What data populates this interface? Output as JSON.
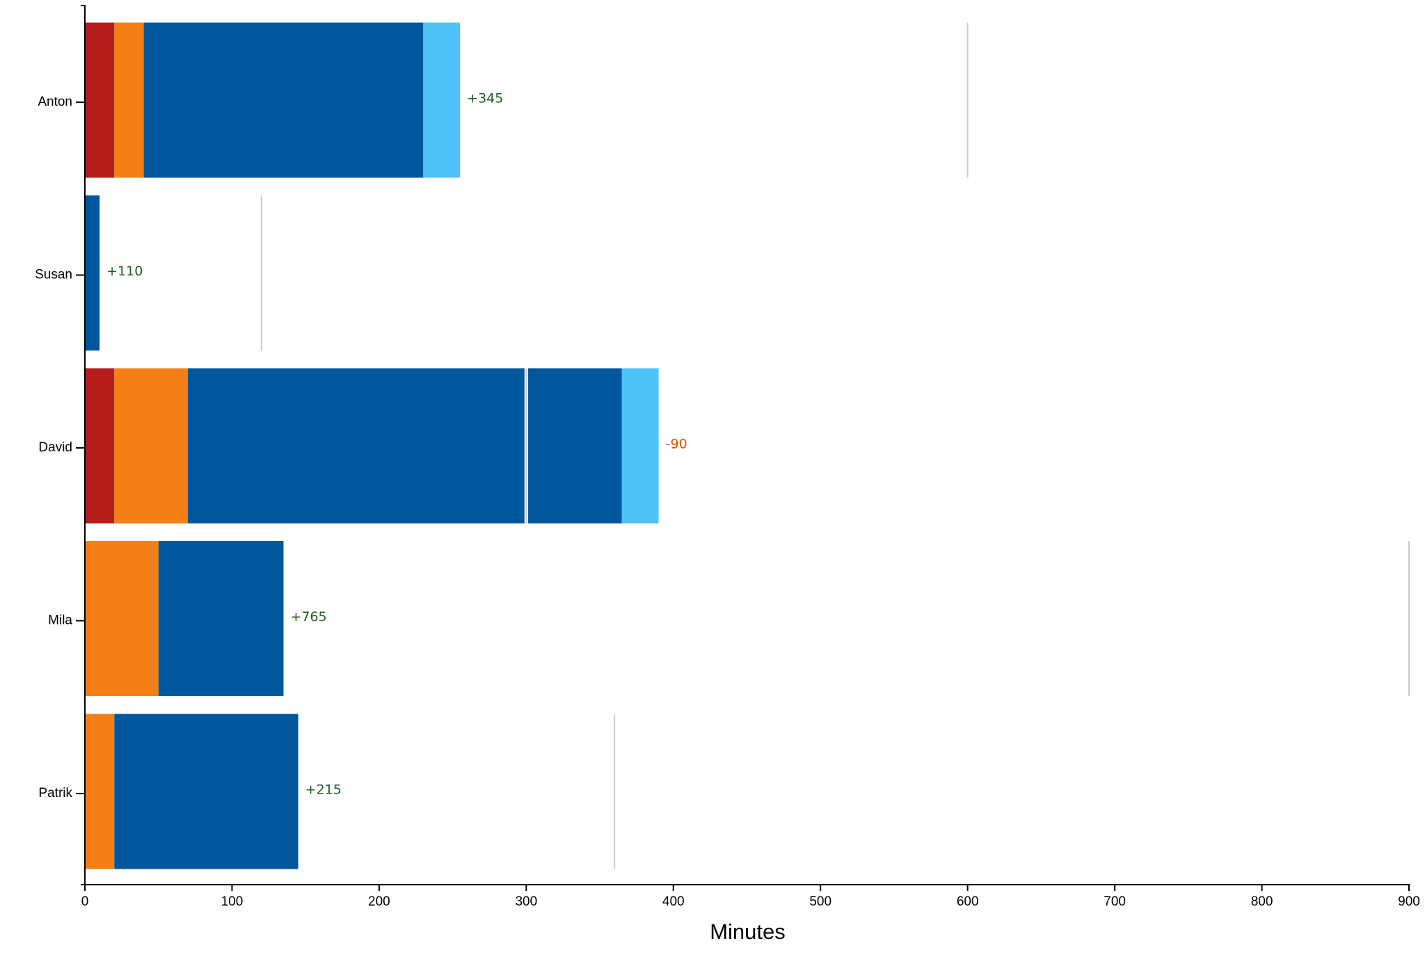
{
  "chart_data": {
    "type": "bar",
    "orientation": "horizontal",
    "stacked": true,
    "xlabel": "Minutes",
    "ylabel": "",
    "xlim": [
      0,
      900
    ],
    "x_ticks": [
      0,
      100,
      200,
      300,
      400,
      500,
      600,
      700,
      800,
      900
    ],
    "grid": false,
    "categories": [
      "Anton",
      "Susan",
      "David",
      "Mila",
      "Patrik"
    ],
    "rows": [
      {
        "name": "Anton",
        "segments": [
          {
            "start": 0,
            "end": 20,
            "color": "#b71c1c"
          },
          {
            "start": 20,
            "end": 40,
            "color": "#f57f17"
          },
          {
            "start": 40,
            "end": 230,
            "color": "#01579b"
          },
          {
            "start": 230,
            "end": 255,
            "color": "#4fc3f7"
          }
        ],
        "target": 600,
        "diff_label": "+345",
        "diff_color": "#1b5e20"
      },
      {
        "name": "Susan",
        "segments": [
          {
            "start": 0,
            "end": 10,
            "color": "#01579b"
          }
        ],
        "target": 120,
        "diff_label": "+110",
        "diff_color": "#1b5e20"
      },
      {
        "name": "David",
        "segments": [
          {
            "start": 0,
            "end": 20,
            "color": "#b71c1c"
          },
          {
            "start": 20,
            "end": 70,
            "color": "#f57f17"
          },
          {
            "start": 70,
            "end": 300,
            "color": "#01579b"
          },
          {
            "start": 300,
            "end": 365,
            "color": "#01579b"
          },
          {
            "start": 365,
            "end": 390,
            "color": "#4fc3f7"
          }
        ],
        "target": 300,
        "diff_label": "-90",
        "diff_color": "#e65100"
      },
      {
        "name": "Mila",
        "segments": [
          {
            "start": 0,
            "end": 50,
            "color": "#f57f17"
          },
          {
            "start": 50,
            "end": 135,
            "color": "#01579b"
          }
        ],
        "target": 900,
        "diff_label": "+765",
        "diff_color": "#1b5e20"
      },
      {
        "name": "Patrik",
        "segments": [
          {
            "start": 0,
            "end": 20,
            "color": "#f57f17"
          },
          {
            "start": 20,
            "end": 145,
            "color": "#01579b"
          }
        ],
        "target": 360,
        "diff_label": "+215",
        "diff_color": "#1b5e20"
      }
    ],
    "colors": {
      "target_line": "#cccccc",
      "axis": "#000000"
    }
  }
}
